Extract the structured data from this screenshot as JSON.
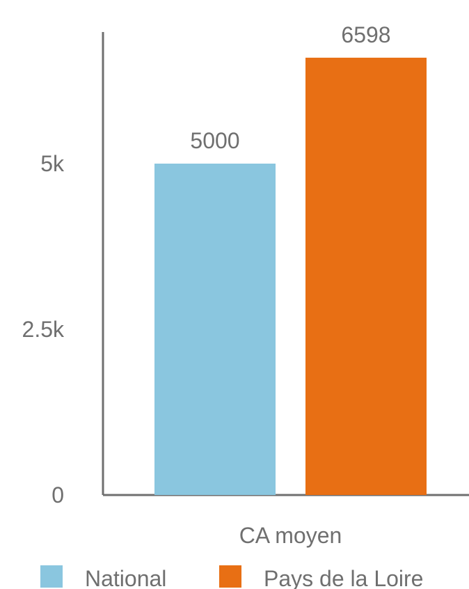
{
  "chart_data": {
    "type": "bar",
    "categories": [
      "CA moyen"
    ],
    "series": [
      {
        "name": "National",
        "values": [
          5000
        ],
        "color": "#8ac6df"
      },
      {
        "name": "Pays de la Loire",
        "values": [
          6598
        ],
        "color": "#e86f14"
      }
    ],
    "data_labels": [
      "5000",
      "6598"
    ],
    "y_ticks": [
      {
        "value": 0,
        "label": "0"
      },
      {
        "value": 2500,
        "label": "2.5k"
      },
      {
        "value": 5000,
        "label": "5k"
      }
    ],
    "ylim": [
      0,
      7500
    ],
    "grid": false,
    "legend": {
      "position": "bottom",
      "items": [
        "National",
        "Pays de la Loire"
      ]
    },
    "axis_color": "#6f6f6f",
    "text_color": "#6f6f6f"
  }
}
